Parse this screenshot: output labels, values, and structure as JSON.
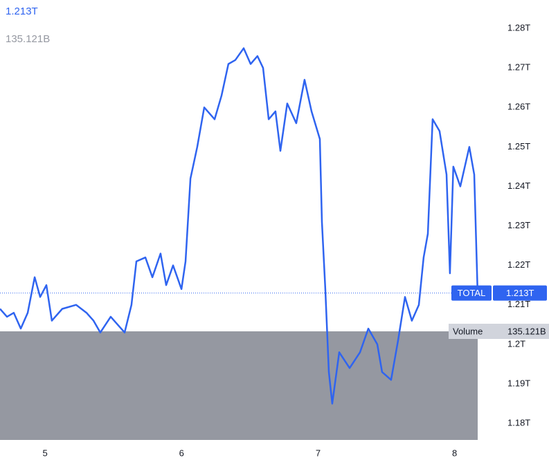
{
  "chart_data": {
    "type": "line",
    "last_value": {
      "value": 1.213,
      "label": "1.213T"
    },
    "volume": {
      "name": "Volume",
      "label": "135.121B"
    },
    "xlim": [
      4.67,
      8.22
    ],
    "xticks": [
      5,
      6,
      7,
      8
    ],
    "ylim": [
      1.1751,
      1.2872
    ],
    "yticks": [
      {
        "value": 1.18,
        "label": "1.18T"
      },
      {
        "value": 1.19,
        "label": "1.19T"
      },
      {
        "value": 1.2,
        "label": "1.2T"
      },
      {
        "value": 1.21,
        "label": "1.21T"
      },
      {
        "value": 1.22,
        "label": "1.22T"
      },
      {
        "value": 1.23,
        "label": "1.23T"
      },
      {
        "value": 1.24,
        "label": "1.24T"
      },
      {
        "value": 1.25,
        "label": "1.25T"
      },
      {
        "value": 1.26,
        "label": "1.26T"
      },
      {
        "value": 1.27,
        "label": "1.27T"
      },
      {
        "value": 1.28,
        "label": "1.28T"
      }
    ],
    "series": [
      {
        "name": "TOTAL",
        "color": "#2f64f0",
        "x": [
          4.67,
          4.721,
          4.771,
          4.822,
          4.873,
          4.924,
          4.964,
          5.01,
          5.05,
          5.126,
          5.228,
          5.304,
          5.355,
          5.405,
          5.481,
          5.583,
          5.633,
          5.669,
          5.735,
          5.786,
          5.846,
          5.887,
          5.938,
          5.999,
          6.029,
          6.065,
          6.115,
          6.166,
          6.242,
          6.293,
          6.343,
          6.394,
          6.455,
          6.506,
          6.556,
          6.597,
          6.638,
          6.688,
          6.724,
          6.774,
          6.84,
          6.901,
          6.952,
          7.013,
          7.028,
          7.053,
          7.079,
          7.104,
          7.155,
          7.231,
          7.307,
          7.368,
          7.434,
          7.469,
          7.535,
          7.586,
          7.637,
          7.687,
          7.738,
          7.773,
          7.804,
          7.839,
          7.89,
          7.941,
          7.966,
          7.991,
          8.042,
          8.108,
          8.144,
          8.169
        ],
        "values": [
          1.209,
          1.207,
          1.208,
          1.204,
          1.208,
          1.217,
          1.212,
          1.215,
          1.206,
          1.209,
          1.21,
          1.208,
          1.206,
          1.203,
          1.207,
          1.203,
          1.21,
          1.221,
          1.222,
          1.217,
          1.223,
          1.215,
          1.22,
          1.214,
          1.221,
          1.242,
          1.25,
          1.26,
          1.257,
          1.263,
          1.271,
          1.272,
          1.275,
          1.271,
          1.273,
          1.27,
          1.257,
          1.259,
          1.249,
          1.261,
          1.256,
          1.267,
          1.259,
          1.252,
          1.231,
          1.214,
          1.193,
          1.185,
          1.198,
          1.194,
          1.198,
          1.204,
          1.2,
          1.193,
          1.191,
          1.201,
          1.212,
          1.206,
          1.21,
          1.222,
          1.228,
          1.257,
          1.254,
          1.243,
          1.218,
          1.245,
          1.24,
          1.25,
          1.243,
          1.213
        ]
      }
    ]
  }
}
